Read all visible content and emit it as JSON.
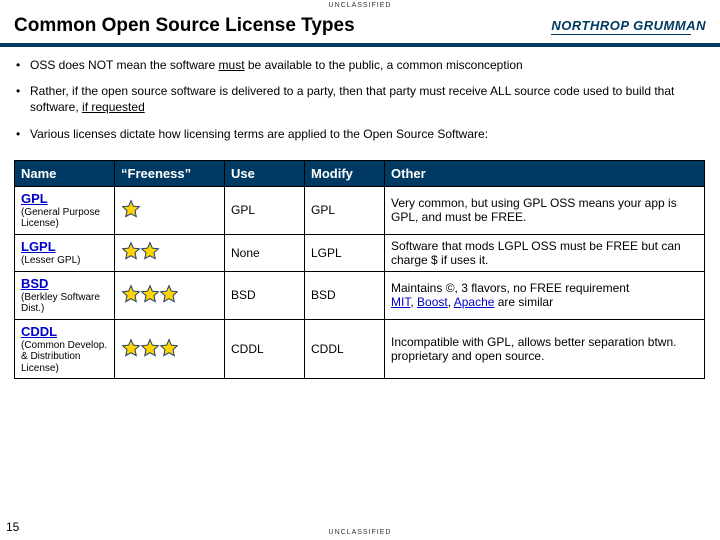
{
  "classification": "UNCLASSIFIED",
  "title": "Common Open Source License Types",
  "logo": "NORTHROP GRUMMAN",
  "page_number": "15",
  "bullets": [
    {
      "pre": "OSS does NOT mean the software ",
      "u": "must",
      "post": " be available to the public, a common misconception"
    },
    {
      "pre": "Rather, if the open source software is delivered to a party, then that party must receive ALL source code used to build that software, ",
      "u": "if requested",
      "post": ""
    },
    {
      "pre": "Various licenses dictate how licensing terms are applied to the Open Source Software:",
      "u": "",
      "post": ""
    }
  ],
  "headers": {
    "name": "Name",
    "free": "“Freeness”",
    "use": "Use",
    "modify": "Modify",
    "other": "Other"
  },
  "star_style": {
    "fill": "#ffd400",
    "stroke": "#1a3a6e",
    "stroke_width": 1.2
  },
  "rows": [
    {
      "name": "GPL",
      "sub": "(General Purpose License)",
      "stars": 1,
      "use": "GPL",
      "modify": "GPL",
      "other_pre": "Very common, but using GPL OSS means your app is GPL, and must be FREE.",
      "links": []
    },
    {
      "name": "LGPL",
      "sub": "(Lesser GPL)",
      "stars": 2,
      "use": "None",
      "modify": "LGPL",
      "other_pre": "Software that mods LGPL OSS must be FREE but can charge $ if uses it.",
      "links": []
    },
    {
      "name": "BSD",
      "sub": "(Berkley Software Dist.)",
      "stars": 3,
      "use": "BSD",
      "modify": "BSD",
      "other_pre": "Maintains ©, 3 flavors, no FREE requirement",
      "links": [
        "MIT",
        "Boost",
        "Apache"
      ],
      "links_suffix": " are similar"
    },
    {
      "name": "CDDL",
      "sub": "(Common Develop. & Distribution License)",
      "stars": 3,
      "use": "CDDL",
      "modify": "CDDL",
      "other_pre": "Incompatible with GPL, allows better separation btwn. proprietary and open source.",
      "links": []
    }
  ]
}
